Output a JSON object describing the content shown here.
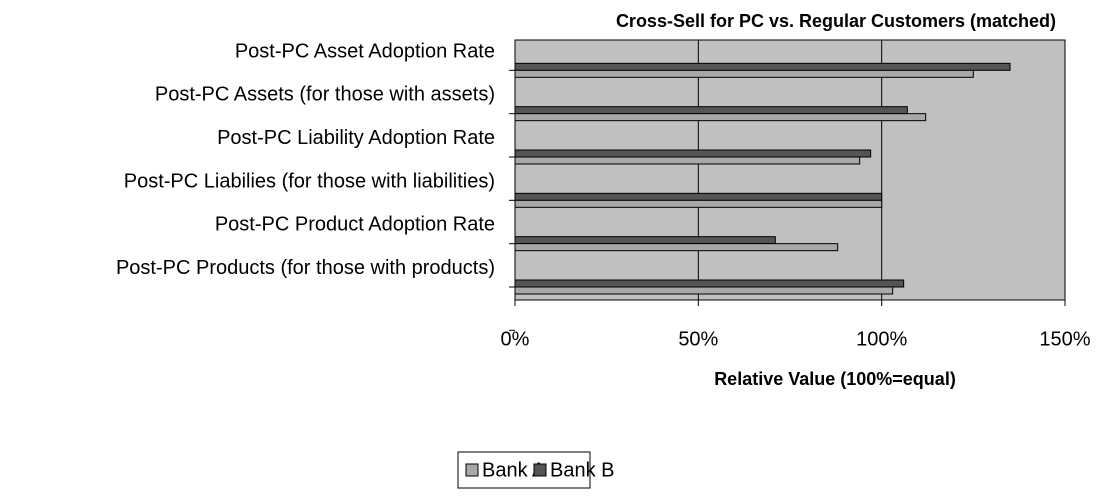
{
  "chart_data": {
    "type": "bar",
    "orientation": "horizontal",
    "title": "Cross-Sell for PC vs. Regular Customers (matched)",
    "x_label": "Relative Value (100%=equal)",
    "categories": [
      "Post-PC Asset Adoption Rate",
      "Post-PC Assets (for those with assets)",
      "Post-PC Liability Adoption Rate",
      "Post-PC Liabilies (for those with liabilities)",
      "Post-PC Product Adoption Rate",
      "Post-PC Products (for those with products)"
    ],
    "series": [
      {
        "name": "Bank A",
        "color": "#a8a8a8",
        "values": [
          125,
          112,
          94,
          100,
          88,
          103
        ]
      },
      {
        "name": "Bank B",
        "color": "#555555",
        "values": [
          135,
          107,
          97,
          100,
          71,
          106
        ]
      }
    ],
    "xlim": [
      0,
      150
    ],
    "xticks": [
      {
        "value": 0,
        "label": "0%"
      },
      {
        "value": 50,
        "label": "50%"
      },
      {
        "value": 100,
        "label": "100%"
      },
      {
        "value": 150,
        "label": "150%"
      }
    ],
    "grid": true,
    "plot_background": "#c0c0c0",
    "legend": "bottom"
  }
}
